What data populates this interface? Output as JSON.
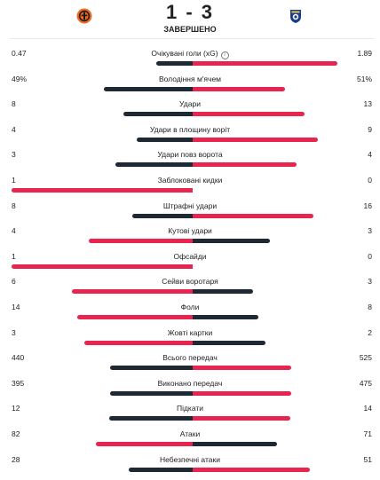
{
  "match": {
    "score": "1 - 3",
    "status": "ЗАВЕРШЕНО",
    "home_logo": "shakhtar-crest-icon",
    "away_logo": "porto-crest-icon"
  },
  "colors": {
    "lower_value": "#1f2933",
    "higher_value": "#e8254f",
    "home_badge": "#f26b1d",
    "away_badge": "#1a3c8c"
  },
  "stats": [
    {
      "label": "Очікувані голи (xG)",
      "home": "0.47",
      "away": "1.89",
      "info": true
    },
    {
      "label": "Володіння м'ячем",
      "home": "49%",
      "away": "51%"
    },
    {
      "label": "Удари",
      "home": "8",
      "away": "13"
    },
    {
      "label": "Удари в площину воріт",
      "home": "4",
      "away": "9"
    },
    {
      "label": "Удари повз ворота",
      "home": "3",
      "away": "4"
    },
    {
      "label": "Заблоковані кидки",
      "home": "1",
      "away": "0"
    },
    {
      "label": "Штрафні удари",
      "home": "8",
      "away": "16"
    },
    {
      "label": "Кутові удари",
      "home": "4",
      "away": "3"
    },
    {
      "label": "Офсайди",
      "home": "1",
      "away": "0"
    },
    {
      "label": "Сейви воротаря",
      "home": "6",
      "away": "3"
    },
    {
      "label": "Фоли",
      "home": "14",
      "away": "8"
    },
    {
      "label": "Жовті картки",
      "home": "3",
      "away": "2"
    },
    {
      "label": "Всього передач",
      "home": "440",
      "away": "525"
    },
    {
      "label": "Виконано передач",
      "home": "395",
      "away": "475"
    },
    {
      "label": "Підкати",
      "home": "12",
      "away": "14"
    },
    {
      "label": "Атаки",
      "home": "82",
      "away": "71"
    },
    {
      "label": "Небезпечні атаки",
      "home": "28",
      "away": "51"
    }
  ]
}
